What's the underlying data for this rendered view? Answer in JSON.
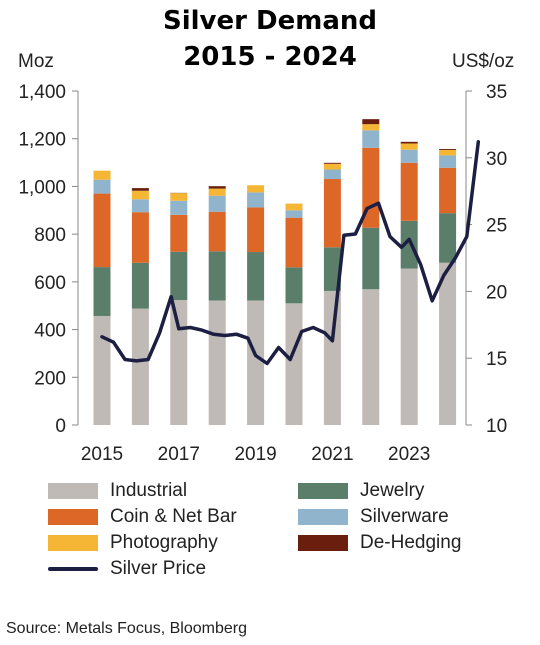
{
  "title_line1": "Silver Demand",
  "title_line2": "2015 - 2024",
  "source": "Source: Metals Focus, Bloomberg",
  "chart_data": {
    "type": "bar",
    "stacked": true,
    "title": "Silver Demand 2015 - 2024",
    "left_axis_unit": "Moz",
    "right_axis_unit": "US$/oz",
    "ylim": [
      0,
      1400
    ],
    "y2lim": [
      10,
      35
    ],
    "yticks": [
      "0",
      "200",
      "400",
      "600",
      "800",
      "1,000",
      "1,200",
      "1,400"
    ],
    "y2ticks": [
      "10",
      "15",
      "20",
      "25",
      "30",
      "35"
    ],
    "categories": [
      "2015",
      "2016",
      "2017",
      "2018",
      "2019",
      "2020",
      "2021",
      "2022",
      "2023",
      "2024"
    ],
    "xtick_labels": [
      "2015",
      "2017",
      "2019",
      "2021",
      "2023"
    ],
    "series": [
      {
        "name": "Industrial",
        "color": "#c0bab6",
        "values": [
          457,
          488,
          524,
          522,
          522,
          510,
          562,
          569,
          656,
          680
        ]
      },
      {
        "name": "Jewelry",
        "color": "#5b7e6a",
        "values": [
          205,
          192,
          202,
          206,
          203,
          151,
          183,
          258,
          200,
          208
        ]
      },
      {
        "name": "Coin & Net Bar",
        "color": "#dd6727",
        "values": [
          308,
          212,
          155,
          166,
          187,
          208,
          286,
          335,
          243,
          190
        ]
      },
      {
        "name": "Silverware",
        "color": "#8fb4cb",
        "values": [
          58,
          54,
          59,
          67,
          63,
          31,
          40,
          73,
          55,
          52
        ]
      },
      {
        "name": "Photography",
        "color": "#f5b636",
        "values": [
          38,
          36,
          32,
          30,
          30,
          28,
          24,
          26,
          26,
          23
        ]
      },
      {
        "name": "De-Hedging",
        "color": "#6a1f0e",
        "values": [
          0,
          11,
          1,
          10,
          0,
          0,
          4,
          21,
          7,
          4
        ]
      }
    ],
    "price_series": {
      "name": "Silver Price",
      "color": "#1c1f42",
      "x": [
        2015.0,
        2015.3,
        2015.6,
        2015.9,
        2016.2,
        2016.5,
        2016.8,
        2017.0,
        2017.3,
        2017.6,
        2017.9,
        2018.2,
        2018.5,
        2018.8,
        2019.0,
        2019.3,
        2019.6,
        2019.9,
        2020.2,
        2020.5,
        2020.8,
        2021.0,
        2021.3,
        2021.6,
        2021.9,
        2022.2,
        2022.5,
        2022.8,
        2023.0,
        2023.3,
        2023.6,
        2023.9,
        2024.2,
        2024.5,
        2024.8
      ],
      "values": [
        16.6,
        16.2,
        14.9,
        14.8,
        14.9,
        16.9,
        19.6,
        17.2,
        17.3,
        17.1,
        16.8,
        16.7,
        16.8,
        16.5,
        15.2,
        14.6,
        15.8,
        14.9,
        17.0,
        17.3,
        16.9,
        16.3,
        24.2,
        24.3,
        26.2,
        26.6,
        24.1,
        23.3,
        23.9,
        22.0,
        19.3,
        21.2,
        22.5,
        24.1,
        31.2
      ]
    },
    "legend": [
      {
        "label": "Industrial",
        "color": "#c0bab6",
        "kind": "box"
      },
      {
        "label": "Jewelry",
        "color": "#5b7e6a",
        "kind": "box"
      },
      {
        "label": "Coin & Net Bar",
        "color": "#dd6727",
        "kind": "box"
      },
      {
        "label": "Silverware",
        "color": "#8fb4cb",
        "kind": "box"
      },
      {
        "label": "Photography",
        "color": "#f5b636",
        "kind": "box"
      },
      {
        "label": "De-Hedging",
        "color": "#6a1f0e",
        "kind": "box"
      },
      {
        "label": "Silver Price",
        "color": "#1c1f42",
        "kind": "line"
      }
    ],
    "legend_placement": "bottom",
    "grid": false
  }
}
